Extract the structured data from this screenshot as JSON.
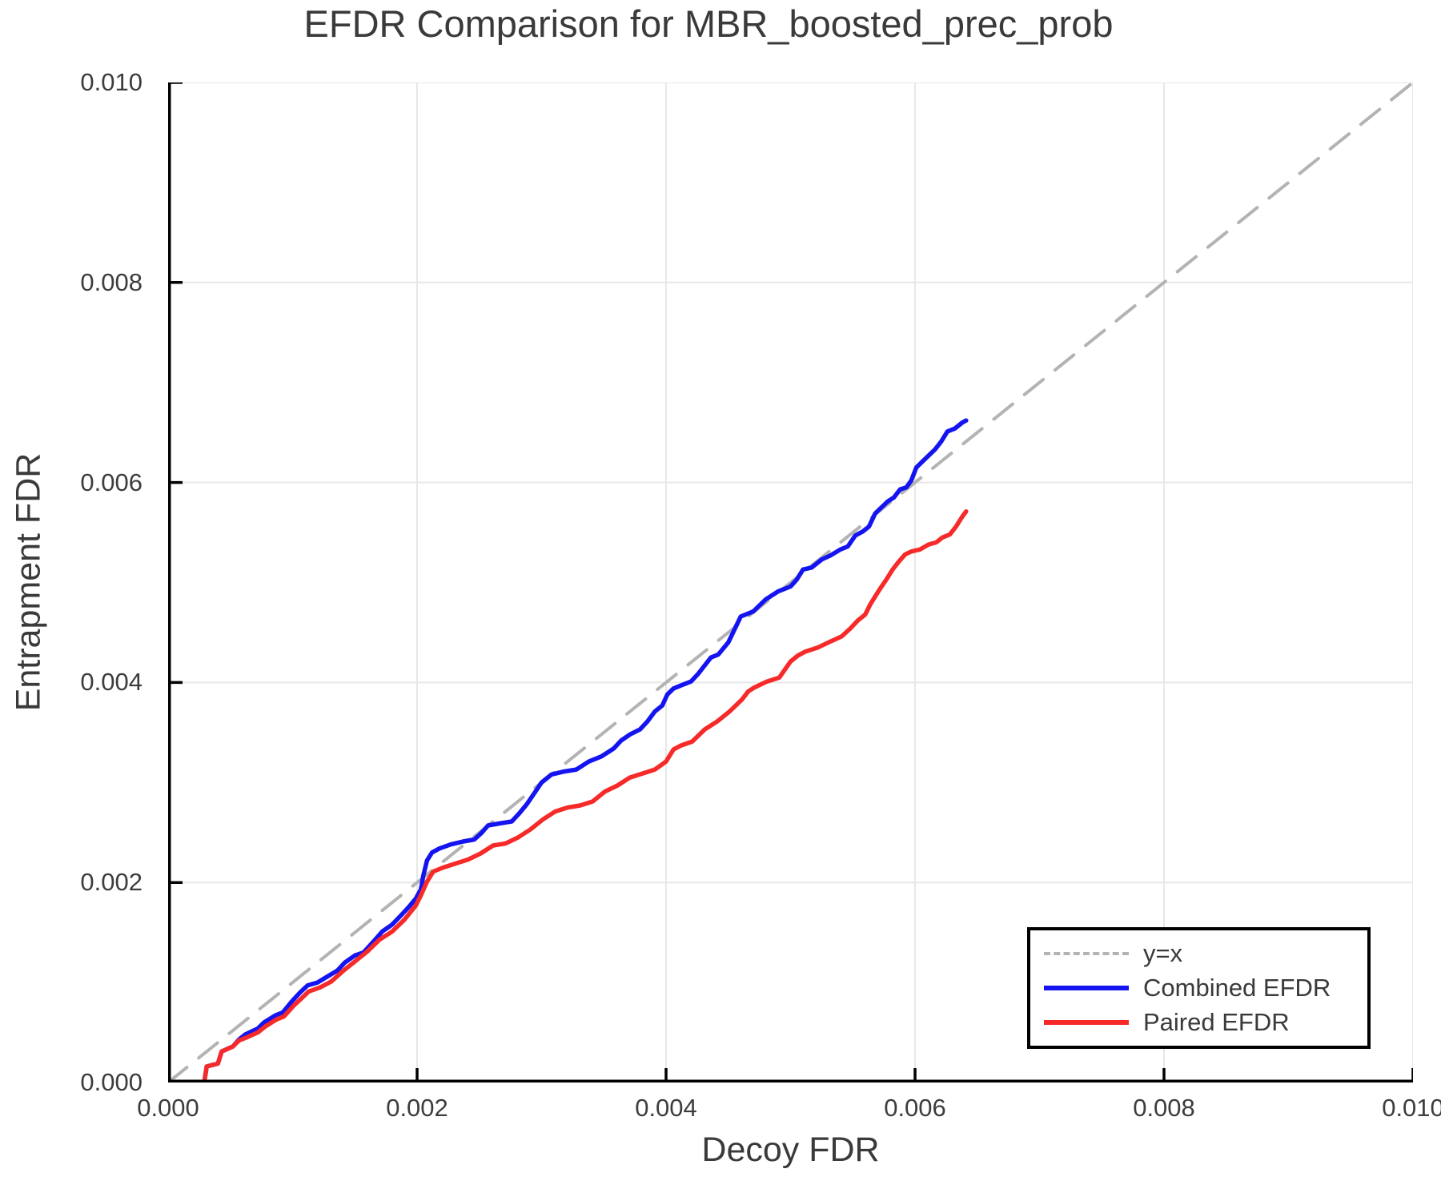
{
  "title": "EFDR Comparison for MBR_boosted_prec_prob",
  "axes": {
    "xlabel": "Decoy FDR",
    "ylabel": "Entrapment FDR",
    "x_tick_labels": [
      "0.000",
      "0.002",
      "0.004",
      "0.006",
      "0.008",
      "0.010"
    ],
    "y_tick_labels": [
      "0.000",
      "0.002",
      "0.004",
      "0.006",
      "0.008",
      "0.010"
    ],
    "tick_values": [
      0,
      0.002,
      0.004,
      0.006,
      0.008,
      0.01
    ]
  },
  "legend": {
    "items": [
      {
        "label": "y=x",
        "color": "#b3b3b3",
        "style": "dashed"
      },
      {
        "label": "Combined EFDR",
        "color": "#1414f0",
        "style": "solid"
      },
      {
        "label": "Paired EFDR",
        "color": "#f72a2a",
        "style": "solid"
      }
    ]
  },
  "colors": {
    "grid": "#e8e8e8",
    "spine": "#000000",
    "text": "#3a3a3a",
    "reference": "#b3b3b3",
    "combined": "#1414f0",
    "paired": "#f72a2a"
  },
  "chart_data": {
    "type": "line",
    "title": "EFDR Comparison for MBR_boosted_prec_prob",
    "xlabel": "Decoy FDR",
    "ylabel": "Entrapment FDR",
    "xlim": [
      0,
      0.01
    ],
    "ylim": [
      0,
      0.01
    ],
    "grid": true,
    "legend_position": "lower right",
    "series": [
      {
        "name": "y=x",
        "color": "#b3b3b3",
        "style": "dashed",
        "width": 4,
        "points": [
          [
            0,
            0
          ],
          [
            0.01,
            0.01
          ]
        ]
      },
      {
        "name": "Combined EFDR",
        "color": "#1414f0",
        "style": "solid",
        "width": 5.5,
        "points": [
          [
            0.0,
            0.0
          ],
          [
            0.00029,
            0.0
          ],
          [
            0.00031,
            0.00016
          ],
          [
            0.0004,
            0.00019
          ],
          [
            0.00043,
            0.00031
          ],
          [
            0.00052,
            0.00036
          ],
          [
            0.00057,
            0.00043
          ],
          [
            0.00062,
            0.00048
          ],
          [
            0.00072,
            0.00054
          ],
          [
            0.00077,
            0.0006
          ],
          [
            0.00086,
            0.00067
          ],
          [
            0.00092,
            0.0007
          ],
          [
            0.001,
            0.00082
          ],
          [
            0.00106,
            0.0009
          ],
          [
            0.00112,
            0.00097
          ],
          [
            0.0012,
            0.001
          ],
          [
            0.00128,
            0.00106
          ],
          [
            0.00136,
            0.00112
          ],
          [
            0.00142,
            0.0012
          ],
          [
            0.0015,
            0.00127
          ],
          [
            0.00157,
            0.0013
          ],
          [
            0.00165,
            0.00141
          ],
          [
            0.00172,
            0.00151
          ],
          [
            0.0018,
            0.00158
          ],
          [
            0.00187,
            0.00167
          ],
          [
            0.00193,
            0.00175
          ],
          [
            0.00199,
            0.00184
          ],
          [
            0.00203,
            0.00193
          ],
          [
            0.00205,
            0.00207
          ],
          [
            0.00208,
            0.00222
          ],
          [
            0.00212,
            0.0023
          ],
          [
            0.00218,
            0.00234
          ],
          [
            0.00227,
            0.00238
          ],
          [
            0.00237,
            0.00241
          ],
          [
            0.00246,
            0.00243
          ],
          [
            0.00252,
            0.0025
          ],
          [
            0.00257,
            0.00257
          ],
          [
            0.00266,
            0.00259
          ],
          [
            0.00276,
            0.00261
          ],
          [
            0.00282,
            0.00269
          ],
          [
            0.00288,
            0.00278
          ],
          [
            0.00294,
            0.00289
          ],
          [
            0.003,
            0.003
          ],
          [
            0.00308,
            0.00308
          ],
          [
            0.00318,
            0.00311
          ],
          [
            0.00328,
            0.00313
          ],
          [
            0.00338,
            0.00321
          ],
          [
            0.00348,
            0.00326
          ],
          [
            0.00358,
            0.00334
          ],
          [
            0.00364,
            0.00342
          ],
          [
            0.00371,
            0.00348
          ],
          [
            0.00379,
            0.00353
          ],
          [
            0.00385,
            0.00361
          ],
          [
            0.00391,
            0.00371
          ],
          [
            0.00397,
            0.00377
          ],
          [
            0.00401,
            0.00388
          ],
          [
            0.00406,
            0.00394
          ],
          [
            0.00412,
            0.00397
          ],
          [
            0.0042,
            0.00401
          ],
          [
            0.00426,
            0.00409
          ],
          [
            0.00431,
            0.00417
          ],
          [
            0.00436,
            0.00425
          ],
          [
            0.00442,
            0.00428
          ],
          [
            0.0045,
            0.0044
          ],
          [
            0.00455,
            0.00453
          ],
          [
            0.0046,
            0.00466
          ],
          [
            0.0047,
            0.00471
          ],
          [
            0.0048,
            0.00483
          ],
          [
            0.0049,
            0.00491
          ],
          [
            0.005,
            0.00496
          ],
          [
            0.00505,
            0.00503
          ],
          [
            0.0051,
            0.00513
          ],
          [
            0.00517,
            0.00515
          ],
          [
            0.00525,
            0.00523
          ],
          [
            0.00532,
            0.00527
          ],
          [
            0.0054,
            0.00533
          ],
          [
            0.00546,
            0.00536
          ],
          [
            0.00552,
            0.00547
          ],
          [
            0.00558,
            0.00551
          ],
          [
            0.00563,
            0.00556
          ],
          [
            0.00568,
            0.00569
          ],
          [
            0.00573,
            0.00575
          ],
          [
            0.00578,
            0.00581
          ],
          [
            0.00583,
            0.00585
          ],
          [
            0.00588,
            0.00593
          ],
          [
            0.00593,
            0.00595
          ],
          [
            0.00597,
            0.00602
          ],
          [
            0.00601,
            0.00615
          ],
          [
            0.00606,
            0.00621
          ],
          [
            0.00611,
            0.00627
          ],
          [
            0.00616,
            0.00633
          ],
          [
            0.00621,
            0.00641
          ],
          [
            0.00626,
            0.00651
          ],
          [
            0.00632,
            0.00654
          ],
          [
            0.00638,
            0.0066
          ],
          [
            0.00641,
            0.00662
          ]
        ]
      },
      {
        "name": "Paired EFDR",
        "color": "#f72a2a",
        "style": "solid",
        "width": 5.5,
        "points": [
          [
            0.0,
            0.0
          ],
          [
            0.00029,
            0.0
          ],
          [
            0.00031,
            0.00016
          ],
          [
            0.0004,
            0.00019
          ],
          [
            0.00043,
            0.00031
          ],
          [
            0.00052,
            0.00036
          ],
          [
            0.00057,
            0.00042
          ],
          [
            0.00063,
            0.00045
          ],
          [
            0.00072,
            0.0005
          ],
          [
            0.00078,
            0.00056
          ],
          [
            0.00087,
            0.00063
          ],
          [
            0.00093,
            0.00066
          ],
          [
            0.00101,
            0.00077
          ],
          [
            0.00107,
            0.00084
          ],
          [
            0.00113,
            0.00091
          ],
          [
            0.00122,
            0.00095
          ],
          [
            0.00131,
            0.00101
          ],
          [
            0.0014,
            0.00111
          ],
          [
            0.0015,
            0.00121
          ],
          [
            0.0016,
            0.00131
          ],
          [
            0.0017,
            0.00143
          ],
          [
            0.0018,
            0.00151
          ],
          [
            0.0019,
            0.00163
          ],
          [
            0.00199,
            0.00177
          ],
          [
            0.00203,
            0.00187
          ],
          [
            0.00208,
            0.00201
          ],
          [
            0.00213,
            0.00211
          ],
          [
            0.00221,
            0.00215
          ],
          [
            0.00231,
            0.00219
          ],
          [
            0.00241,
            0.00223
          ],
          [
            0.00251,
            0.00229
          ],
          [
            0.00261,
            0.00237
          ],
          [
            0.00271,
            0.00239
          ],
          [
            0.00281,
            0.00245
          ],
          [
            0.00291,
            0.00253
          ],
          [
            0.00301,
            0.00263
          ],
          [
            0.00311,
            0.00271
          ],
          [
            0.00321,
            0.00275
          ],
          [
            0.00331,
            0.00277
          ],
          [
            0.00341,
            0.00281
          ],
          [
            0.00351,
            0.00291
          ],
          [
            0.00361,
            0.00297
          ],
          [
            0.00371,
            0.00305
          ],
          [
            0.00381,
            0.00309
          ],
          [
            0.00391,
            0.00313
          ],
          [
            0.004,
            0.00321
          ],
          [
            0.00406,
            0.00333
          ],
          [
            0.00412,
            0.00337
          ],
          [
            0.00421,
            0.00341
          ],
          [
            0.00431,
            0.00353
          ],
          [
            0.00441,
            0.00361
          ],
          [
            0.00451,
            0.00371
          ],
          [
            0.00461,
            0.00383
          ],
          [
            0.00466,
            0.00391
          ],
          [
            0.00471,
            0.00395
          ],
          [
            0.00481,
            0.00401
          ],
          [
            0.00491,
            0.00405
          ],
          [
            0.005,
            0.00421
          ],
          [
            0.00506,
            0.00427
          ],
          [
            0.00512,
            0.00431
          ],
          [
            0.00522,
            0.00435
          ],
          [
            0.00532,
            0.00441
          ],
          [
            0.00541,
            0.00446
          ],
          [
            0.00548,
            0.00454
          ],
          [
            0.00554,
            0.00462
          ],
          [
            0.0056,
            0.00468
          ],
          [
            0.00564,
            0.00478
          ],
          [
            0.00568,
            0.00486
          ],
          [
            0.00572,
            0.00494
          ],
          [
            0.00577,
            0.00503
          ],
          [
            0.00582,
            0.00513
          ],
          [
            0.00587,
            0.00521
          ],
          [
            0.00592,
            0.00528
          ],
          [
            0.00597,
            0.00531
          ],
          [
            0.00604,
            0.00533
          ],
          [
            0.00611,
            0.00538
          ],
          [
            0.00617,
            0.0054
          ],
          [
            0.00622,
            0.00545
          ],
          [
            0.00628,
            0.00548
          ],
          [
            0.00633,
            0.00556
          ],
          [
            0.00638,
            0.00566
          ],
          [
            0.00641,
            0.00571
          ]
        ]
      }
    ]
  }
}
